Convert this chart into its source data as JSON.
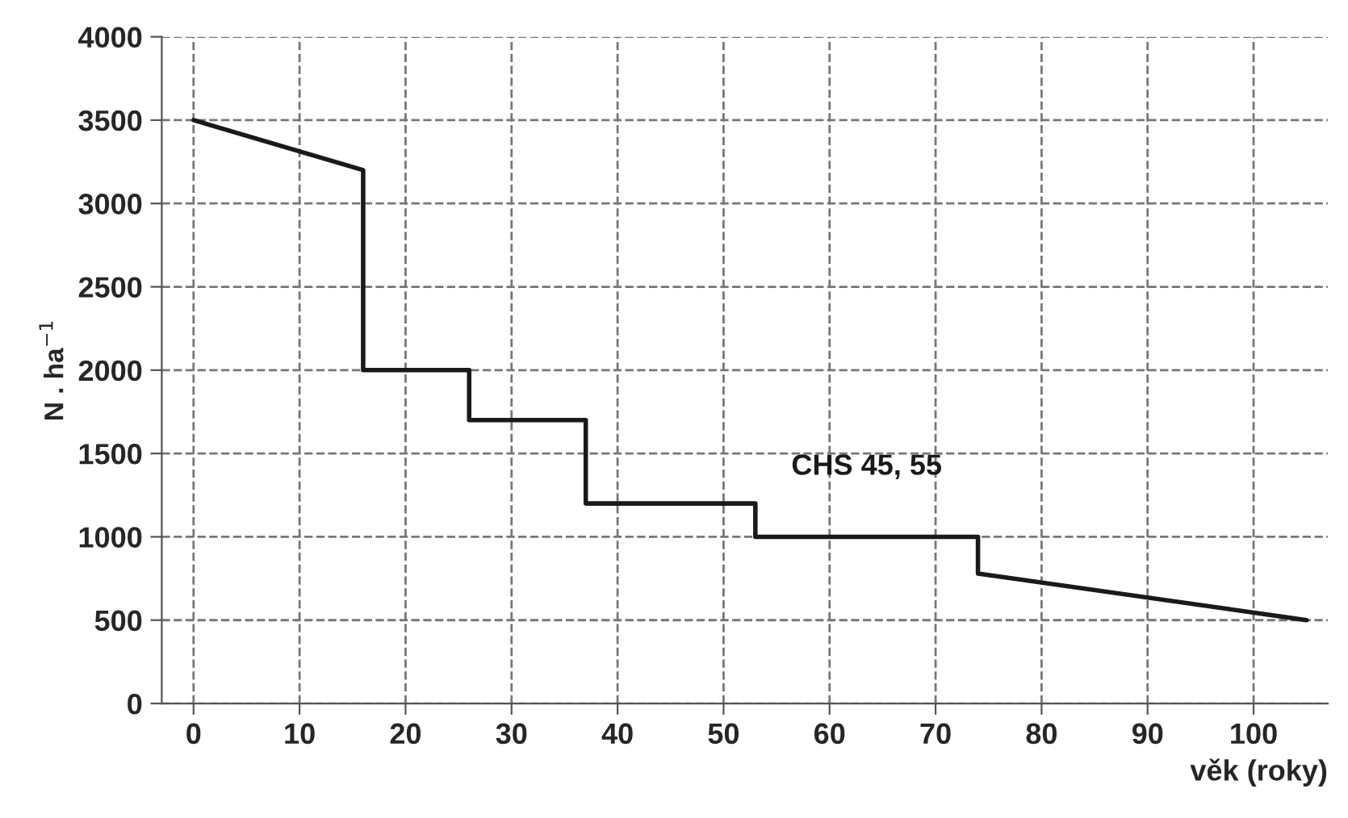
{
  "chart_data": {
    "type": "line",
    "xlabel": "věk (roky)",
    "ylabel": "N . ha$^{−1}$",
    "series": [
      {
        "name": "CHS 45, 55",
        "color": "#1a1a1a",
        "x": [
          0,
          16,
          16,
          26,
          26,
          37,
          37,
          53,
          53,
          74,
          74,
          105
        ],
        "values": [
          3500,
          3200,
          2000,
          2000,
          1700,
          1700,
          1200,
          1200,
          1000,
          1000,
          780,
          500
        ]
      }
    ],
    "xlim": [
      -3,
      107
    ],
    "xticks": [
      0,
      10,
      20,
      30,
      40,
      50,
      60,
      70,
      80,
      90,
      100
    ],
    "ylim": [
      0,
      4000
    ],
    "yticks": [
      0,
      500,
      1000,
      1500,
      2000,
      2500,
      3000,
      3500,
      4000
    ],
    "grid": true,
    "line_style": "solid",
    "marker": "none"
  }
}
